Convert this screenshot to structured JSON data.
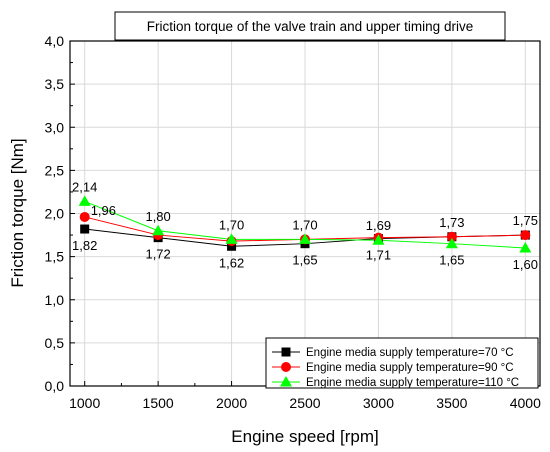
{
  "chart_data": {
    "type": "line",
    "title": "Friction torque of the valve train and upper timing drive",
    "xlabel": "Engine speed [rpm]",
    "ylabel": "Friction torque [Nm]",
    "x": [
      1000,
      1500,
      2000,
      2500,
      3000,
      3500,
      4000
    ],
    "xticks": [
      "1000",
      "1500",
      "2000",
      "2500",
      "3000",
      "3500",
      "4000"
    ],
    "xlim": [
      900,
      4100
    ],
    "ylim": [
      0,
      4.0
    ],
    "yticks": [
      "0,0",
      "0,5",
      "1,0",
      "1,5",
      "2,0",
      "2,5",
      "3,0",
      "3,5",
      "4,0"
    ],
    "grid": true,
    "legend_position": "bottom-right",
    "series": [
      {
        "name": "Engine media supply temperature=70 °C",
        "color": "#000000",
        "marker": "square",
        "values": [
          1.82,
          1.72,
          1.62,
          1.65,
          1.71,
          1.73,
          1.75
        ],
        "labels": [
          "1,82",
          "1,72",
          "1,62",
          "1,65",
          "1,71",
          "",
          ""
        ]
      },
      {
        "name": "Engine media supply temperature=90 °C",
        "color": "#ff0000",
        "marker": "circle",
        "values": [
          1.96,
          1.75,
          1.68,
          1.7,
          1.72,
          1.73,
          1.75
        ],
        "labels": [
          "1,96",
          "",
          "",
          "",
          "",
          "",
          ""
        ]
      },
      {
        "name": "Engine media supply temperature=110 °C",
        "color": "#00ff00",
        "marker": "triangle",
        "values": [
          2.14,
          1.8,
          1.7,
          1.7,
          1.69,
          1.65,
          1.6
        ],
        "labels": [
          "2,14",
          "1,80",
          "1,70",
          "1,70",
          "1,69",
          "1,65",
          "1,60"
        ]
      }
    ],
    "label_annotations": [
      {
        "series": 2,
        "index": 0,
        "text": "2,14",
        "pos": "above"
      },
      {
        "series": 1,
        "index": 0,
        "text": "1,96",
        "pos": "right"
      },
      {
        "series": 0,
        "index": 0,
        "text": "1,82",
        "pos": "below"
      },
      {
        "series": 2,
        "index": 1,
        "text": "1,80",
        "pos": "above"
      },
      {
        "series": 0,
        "index": 1,
        "text": "1,72",
        "pos": "below"
      },
      {
        "series": 2,
        "index": 2,
        "text": "1,70",
        "pos": "above"
      },
      {
        "series": 0,
        "index": 2,
        "text": "1,62",
        "pos": "below"
      },
      {
        "series": 2,
        "index": 3,
        "text": "1,70",
        "pos": "above"
      },
      {
        "series": 0,
        "index": 3,
        "text": "1,65",
        "pos": "below"
      },
      {
        "series": 2,
        "index": 4,
        "text": "1,69",
        "pos": "above"
      },
      {
        "series": 0,
        "index": 4,
        "text": "1,71",
        "pos": "below"
      },
      {
        "series": 0,
        "index": 5,
        "text": "1,73",
        "pos": "above"
      },
      {
        "series": 2,
        "index": 5,
        "text": "1,65",
        "pos": "below"
      },
      {
        "series": 0,
        "index": 6,
        "text": "1,75",
        "pos": "above"
      },
      {
        "series": 2,
        "index": 6,
        "text": "1,60",
        "pos": "below"
      }
    ]
  }
}
